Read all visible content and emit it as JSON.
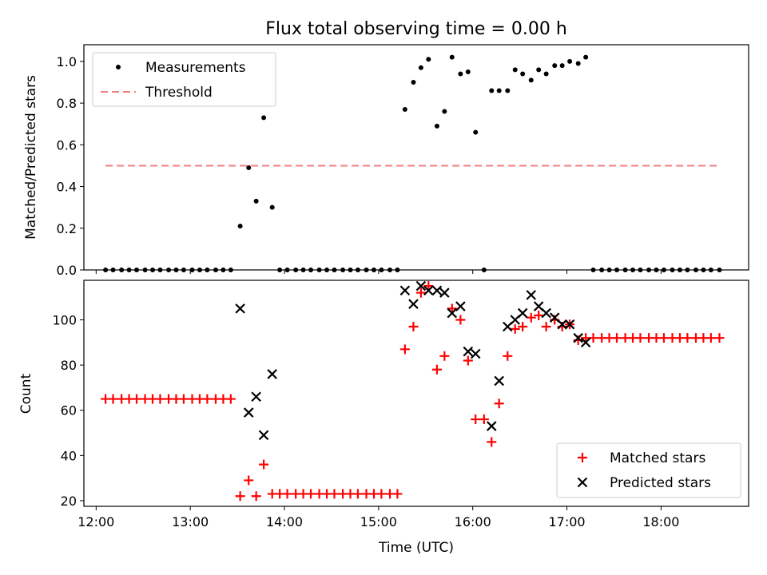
{
  "title": "Flux total observing time = 0.00 h",
  "xlabel": "Time (UTC)",
  "x_tick_labels": [
    "12:00",
    "13:00",
    "14:00",
    "15:00",
    "16:00",
    "17:00",
    "18:00"
  ],
  "chart_data": [
    {
      "type": "scatter",
      "ylabel": "Matched/Predicted stars",
      "xlim": [
        11.87,
        18.93
      ],
      "ylim": [
        0.0,
        1.08
      ],
      "yticks": [
        "0.0",
        "0.2",
        "0.4",
        "0.6",
        "0.8",
        "1.0"
      ],
      "legend_position": "upper left",
      "series": [
        {
          "name": "Measurements",
          "style": "dot",
          "color": "#000000",
          "points": [
            [
              12.1,
              0.0
            ],
            [
              12.18,
              0.0
            ],
            [
              12.27,
              0.0
            ],
            [
              12.35,
              0.0
            ],
            [
              12.43,
              0.0
            ],
            [
              12.52,
              0.0
            ],
            [
              12.6,
              0.0
            ],
            [
              12.68,
              0.0
            ],
            [
              12.77,
              0.0
            ],
            [
              12.85,
              0.0
            ],
            [
              12.93,
              0.0
            ],
            [
              13.02,
              0.0
            ],
            [
              13.1,
              0.0
            ],
            [
              13.18,
              0.0
            ],
            [
              13.27,
              0.0
            ],
            [
              13.35,
              0.0
            ],
            [
              13.43,
              0.0
            ],
            [
              13.53,
              0.21
            ],
            [
              13.62,
              0.49
            ],
            [
              13.7,
              0.33
            ],
            [
              13.78,
              0.73
            ],
            [
              13.87,
              0.3
            ],
            [
              13.95,
              0.0
            ],
            [
              14.03,
              0.0
            ],
            [
              14.12,
              0.0
            ],
            [
              14.2,
              0.0
            ],
            [
              14.28,
              0.0
            ],
            [
              14.37,
              0.0
            ],
            [
              14.45,
              0.0
            ],
            [
              14.53,
              0.0
            ],
            [
              14.62,
              0.0
            ],
            [
              14.7,
              0.0
            ],
            [
              14.78,
              0.0
            ],
            [
              14.87,
              0.0
            ],
            [
              14.95,
              0.0
            ],
            [
              15.03,
              0.0
            ],
            [
              15.12,
              0.0
            ],
            [
              15.2,
              0.0
            ],
            [
              15.28,
              0.77
            ],
            [
              15.37,
              0.9
            ],
            [
              15.45,
              0.97
            ],
            [
              15.53,
              1.01
            ],
            [
              15.62,
              0.69
            ],
            [
              15.7,
              0.76
            ],
            [
              15.78,
              1.02
            ],
            [
              15.87,
              0.94
            ],
            [
              15.95,
              0.95
            ],
            [
              16.03,
              0.66
            ],
            [
              16.12,
              0.0
            ],
            [
              16.2,
              0.86
            ],
            [
              16.28,
              0.86
            ],
            [
              16.37,
              0.86
            ],
            [
              16.45,
              0.96
            ],
            [
              16.53,
              0.94
            ],
            [
              16.62,
              0.91
            ],
            [
              16.7,
              0.96
            ],
            [
              16.78,
              0.94
            ],
            [
              16.87,
              0.98
            ],
            [
              16.95,
              0.98
            ],
            [
              17.03,
              1.0
            ],
            [
              17.12,
              0.99
            ],
            [
              17.2,
              1.02
            ],
            [
              17.28,
              0.0
            ],
            [
              17.37,
              0.0
            ],
            [
              17.45,
              0.0
            ],
            [
              17.53,
              0.0
            ],
            [
              17.62,
              0.0
            ],
            [
              17.7,
              0.0
            ],
            [
              17.78,
              0.0
            ],
            [
              17.87,
              0.0
            ],
            [
              17.95,
              0.0
            ],
            [
              18.03,
              0.0
            ],
            [
              18.12,
              0.0
            ],
            [
              18.2,
              0.0
            ],
            [
              18.28,
              0.0
            ],
            [
              18.37,
              0.0
            ],
            [
              18.45,
              0.0
            ],
            [
              18.53,
              0.0
            ],
            [
              18.62,
              0.0
            ]
          ]
        },
        {
          "name": "Threshold",
          "style": "dashed-line",
          "color": "#f08080",
          "points": [
            [
              12.1,
              0.5
            ],
            [
              18.62,
              0.5
            ]
          ]
        }
      ]
    },
    {
      "type": "scatter",
      "ylabel": "Count",
      "xlim": [
        11.87,
        18.93
      ],
      "ylim": [
        17.5,
        117.5
      ],
      "yticks": [
        "20",
        "40",
        "60",
        "80",
        "100"
      ],
      "legend_position": "lower right",
      "series": [
        {
          "name": "Matched stars",
          "marker": "plus",
          "color": "#ff0000",
          "points": [
            [
              12.1,
              65
            ],
            [
              12.18,
              65
            ],
            [
              12.27,
              65
            ],
            [
              12.35,
              65
            ],
            [
              12.43,
              65
            ],
            [
              12.52,
              65
            ],
            [
              12.6,
              65
            ],
            [
              12.68,
              65
            ],
            [
              12.77,
              65
            ],
            [
              12.85,
              65
            ],
            [
              12.93,
              65
            ],
            [
              13.02,
              65
            ],
            [
              13.1,
              65
            ],
            [
              13.18,
              65
            ],
            [
              13.27,
              65
            ],
            [
              13.35,
              65
            ],
            [
              13.43,
              65
            ],
            [
              13.53,
              22
            ],
            [
              13.62,
              29
            ],
            [
              13.7,
              22
            ],
            [
              13.78,
              36
            ],
            [
              13.87,
              23
            ],
            [
              13.95,
              23
            ],
            [
              14.03,
              23
            ],
            [
              14.12,
              23
            ],
            [
              14.2,
              23
            ],
            [
              14.28,
              23
            ],
            [
              14.37,
              23
            ],
            [
              14.45,
              23
            ],
            [
              14.53,
              23
            ],
            [
              14.62,
              23
            ],
            [
              14.7,
              23
            ],
            [
              14.78,
              23
            ],
            [
              14.87,
              23
            ],
            [
              14.95,
              23
            ],
            [
              15.03,
              23
            ],
            [
              15.12,
              23
            ],
            [
              15.2,
              23
            ],
            [
              15.28,
              87
            ],
            [
              15.37,
              97
            ],
            [
              15.45,
              112
            ],
            [
              15.53,
              115
            ],
            [
              15.62,
              78
            ],
            [
              15.7,
              84
            ],
            [
              15.78,
              105
            ],
            [
              15.87,
              100
            ],
            [
              15.95,
              82
            ],
            [
              16.03,
              56
            ],
            [
              16.12,
              56
            ],
            [
              16.2,
              46
            ],
            [
              16.28,
              63
            ],
            [
              16.37,
              84
            ],
            [
              16.45,
              96
            ],
            [
              16.53,
              97
            ],
            [
              16.62,
              101
            ],
            [
              16.7,
              102
            ],
            [
              16.78,
              97
            ],
            [
              16.87,
              100
            ],
            [
              16.95,
              97
            ],
            [
              17.03,
              98
            ],
            [
              17.12,
              91
            ],
            [
              17.2,
              92
            ],
            [
              17.28,
              92
            ],
            [
              17.37,
              92
            ],
            [
              17.45,
              92
            ],
            [
              17.53,
              92
            ],
            [
              17.62,
              92
            ],
            [
              17.7,
              92
            ],
            [
              17.78,
              92
            ],
            [
              17.87,
              92
            ],
            [
              17.95,
              92
            ],
            [
              18.03,
              92
            ],
            [
              18.12,
              92
            ],
            [
              18.2,
              92
            ],
            [
              18.28,
              92
            ],
            [
              18.37,
              92
            ],
            [
              18.45,
              92
            ],
            [
              18.53,
              92
            ],
            [
              18.62,
              92
            ]
          ]
        },
        {
          "name": "Predicted stars",
          "marker": "x",
          "color": "#000000",
          "points": [
            [
              13.53,
              105
            ],
            [
              13.62,
              59
            ],
            [
              13.7,
              66
            ],
            [
              13.78,
              49
            ],
            [
              13.87,
              76
            ],
            [
              15.28,
              113
            ],
            [
              15.37,
              107
            ],
            [
              15.45,
              115
            ],
            [
              15.53,
              113
            ],
            [
              15.62,
              113
            ],
            [
              15.7,
              112
            ],
            [
              15.78,
              103
            ],
            [
              15.87,
              106
            ],
            [
              15.95,
              86
            ],
            [
              16.03,
              85
            ],
            [
              16.2,
              53
            ],
            [
              16.28,
              73
            ],
            [
              16.37,
              97
            ],
            [
              16.45,
              100
            ],
            [
              16.53,
              103
            ],
            [
              16.62,
              111
            ],
            [
              16.7,
              106
            ],
            [
              16.78,
              103
            ],
            [
              16.87,
              101
            ],
            [
              16.95,
              98
            ],
            [
              17.03,
              98
            ],
            [
              17.12,
              92
            ],
            [
              17.2,
              90
            ]
          ]
        }
      ]
    }
  ]
}
